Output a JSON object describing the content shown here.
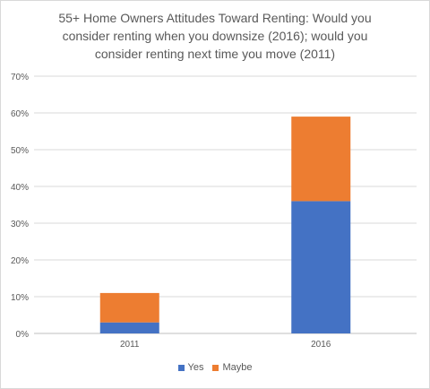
{
  "chart_data": {
    "type": "bar",
    "stacked": true,
    "title_lines": [
      "55+ Home Owners Attitudes Toward Renting: Would you",
      "consider renting when you downsize (2016); would you",
      "consider renting next time you move (2011)"
    ],
    "categories": [
      "2011",
      "2016"
    ],
    "series": [
      {
        "name": "Yes",
        "values": [
          3,
          36
        ],
        "color": "#4472c4"
      },
      {
        "name": "Maybe",
        "values": [
          8,
          23
        ],
        "color": "#ed7d31"
      }
    ],
    "ylim": [
      0,
      70
    ],
    "yticks": [
      "0%",
      "10%",
      "20%",
      "30%",
      "40%",
      "50%",
      "60%",
      "70%"
    ],
    "grid": true,
    "legend_position": "bottom"
  }
}
